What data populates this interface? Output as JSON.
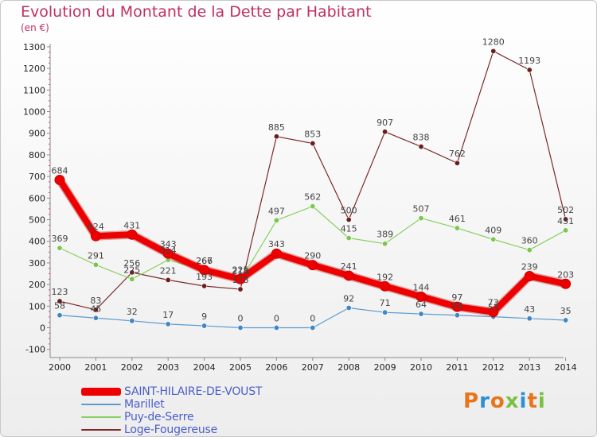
{
  "title": "Evolution du Montant de la Dette par Habitant",
  "unit": "(en €)",
  "logo": "Proxiti",
  "chart_data": {
    "type": "line",
    "x": [
      "2000",
      "2001",
      "2002",
      "2003",
      "2004",
      "2005",
      "2006",
      "2007",
      "2008",
      "2009",
      "2010",
      "2011",
      "2012",
      "2013",
      "2014"
    ],
    "ylim": [
      -100,
      1300
    ],
    "yticks": [
      -100,
      0,
      100,
      200,
      300,
      400,
      500,
      600,
      700,
      800,
      900,
      1000,
      1100,
      1200,
      1300
    ],
    "grid": false,
    "legend_position": "bottom",
    "series": [
      {
        "name": "SAINT-HILAIRE-DE-VOUST",
        "color": "#ee0000",
        "marker_color": "#ee0000",
        "values": [
          684,
          424,
          431,
          343,
          267,
          225,
          343,
          290,
          241,
          192,
          144,
          97,
          73,
          239,
          203
        ],
        "labels": [
          "684",
          "424",
          "431",
          "343",
          "267",
          "225",
          "343",
          "290",
          "241",
          "192",
          "144",
          "97",
          "73",
          "239",
          "203"
        ]
      },
      {
        "name": "Marillet",
        "color": "#5b9bd0",
        "marker_color": "#3f86c6",
        "values": [
          58,
          45,
          32,
          17,
          9,
          0,
          0,
          0,
          92,
          71,
          64,
          58,
          51,
          43,
          35
        ],
        "labels": [
          "58",
          "45",
          "32",
          "17",
          "9",
          "0",
          "0",
          "0",
          "92",
          "71",
          "64",
          "58",
          "51",
          "43",
          "35"
        ]
      },
      {
        "name": "Puy-de-Serre",
        "color": "#88d060",
        "marker_color": "#7ac74f",
        "values": [
          369,
          291,
          225,
          314,
          266,
          218,
          497,
          562,
          415,
          389,
          507,
          461,
          409,
          360,
          451
        ],
        "labels": [
          "369",
          "291",
          "225",
          "314",
          "266",
          "218",
          "497",
          "562",
          "415",
          "389",
          "507",
          "461",
          "409",
          "360",
          "451"
        ]
      },
      {
        "name": "Loge-Fougereuse",
        "color": "#7a2a2a",
        "marker_color": "#6b1d1d",
        "values": [
          123,
          83,
          256,
          221,
          193,
          178,
          885,
          853,
          500,
          907,
          838,
          762,
          1280,
          1193,
          502
        ],
        "labels": [
          "123",
          "83",
          "256",
          "221",
          "193",
          "178",
          "885",
          "853",
          "500",
          "907",
          "838",
          "762",
          "1280",
          "1193",
          "502"
        ]
      }
    ]
  },
  "colors": {
    "title": "#c0305f",
    "axis": "#888888",
    "legend_text": "#4a5fc8",
    "tick_text": "#222222",
    "value_text": "#444444"
  },
  "logo_colors": [
    "#e8741b",
    "#2f8fd4",
    "#e8741b",
    "#7ac143",
    "#2f8fd4",
    "#e8741b",
    "#7ac143"
  ]
}
